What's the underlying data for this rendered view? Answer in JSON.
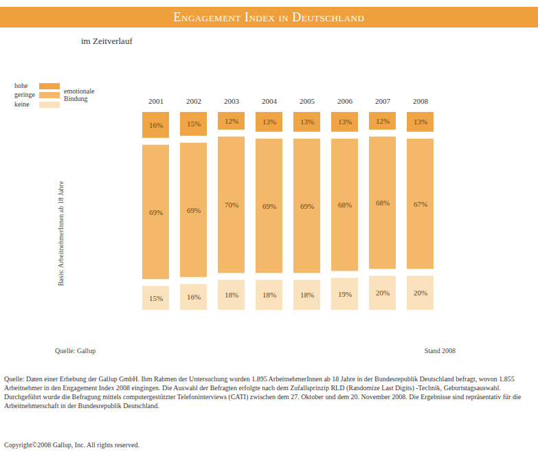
{
  "chart_data": {
    "type": "bar",
    "title": "Engagement Index in Deutschland",
    "subtitle": "im Zeitverlauf",
    "ylabel": "Basis: ArbeitnehmerInnen ab 18 Jahre",
    "legend_title": "emotionale Bindung",
    "legend": "top-left",
    "stacked": true,
    "data_labels": true,
    "tick_labels": "x",
    "ylim": [
      0,
      100
    ],
    "categories": [
      "2001",
      "2002",
      "2003",
      "2004",
      "2005",
      "2006",
      "2007",
      "2008"
    ],
    "series": [
      {
        "name": "hohe",
        "color": "#efa546",
        "values": [
          16,
          15,
          12,
          13,
          13,
          13,
          12,
          13
        ],
        "value_labels": [
          "16%",
          "15%",
          "12%",
          "13%",
          "13%",
          "13%",
          "12%",
          "13%"
        ]
      },
      {
        "name": "geringe",
        "color": "#f3b86a",
        "values": [
          69,
          69,
          70,
          69,
          69,
          68,
          68,
          67
        ],
        "value_labels": [
          "69%",
          "69%",
          "70%",
          "69%",
          "69%",
          "68%",
          "68%",
          "67%"
        ]
      },
      {
        "name": "keine",
        "color": "#fbe2bf",
        "values": [
          15,
          16,
          18,
          18,
          18,
          19,
          20,
          20
        ],
        "value_labels": [
          "15%",
          "16%",
          "18%",
          "18%",
          "18%",
          "19%",
          "20%",
          "20%"
        ]
      }
    ],
    "annotations": [
      "Quelle: Gallup",
      "Stand 2008"
    ],
    "notes": [
      "Quelle: Daten einer Erhebung der Gallup GmbH. Ihm Rahmen der Untersuchung wurden 1.895 ArbeitnehmerInnen ab 18 Jahre in der Bundesrepublik Deutschland befragt, wovon 1.855 Arbeitnehmer in den Engagement Index 2008 eingingen. Die Auswahl der Befragten erfolgte nach dem Zufallsprinzip RLD (Randomize Last Digits) -Technik, Geburtstagsauswahl. Durchgeführt wurde die Befragung mittels computergestützter Telefoninterviews (CATI) zwischen dem 27. Oktober und dem 20. November 2008. Die Ergebnisse sind repräsentativ für die Arbeitnehmerschaft in der Bundesrepublik Deutschland.",
      "Copyright©2008 Gallup, Inc. All rights reserved."
    ]
  }
}
